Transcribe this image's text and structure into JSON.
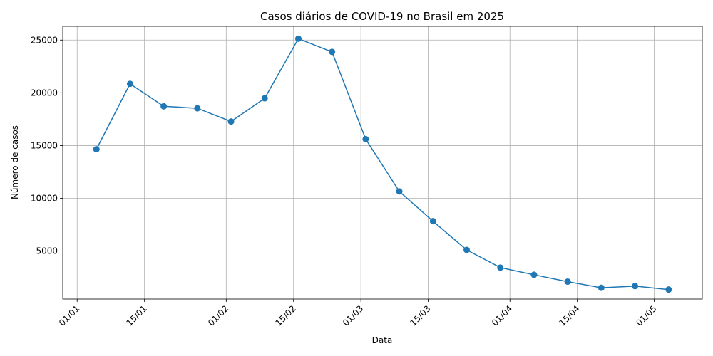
{
  "chart_data": {
    "type": "line",
    "title": "Casos diários de COVID-19 no Brasil em 2025",
    "xlabel": "Data",
    "ylabel": "Número de casos",
    "series_color": "#1f77b4",
    "grid": true,
    "x_date_range": [
      "2024-12-29",
      "2025-05-11"
    ],
    "ylim": [
      450,
      26300
    ],
    "x_ticks": [
      {
        "date": "2025-01-01",
        "label": "01/01"
      },
      {
        "date": "2025-01-15",
        "label": "15/01"
      },
      {
        "date": "2025-02-01",
        "label": "01/02"
      },
      {
        "date": "2025-02-15",
        "label": "15/02"
      },
      {
        "date": "2025-03-01",
        "label": "01/03"
      },
      {
        "date": "2025-03-15",
        "label": "15/03"
      },
      {
        "date": "2025-04-01",
        "label": "01/04"
      },
      {
        "date": "2025-04-15",
        "label": "15/04"
      },
      {
        "date": "2025-05-01",
        "label": "01/05"
      }
    ],
    "y_ticks": [
      {
        "value": 5000,
        "label": "5000"
      },
      {
        "value": 10000,
        "label": "10000"
      },
      {
        "value": 15000,
        "label": "15000"
      },
      {
        "value": 20000,
        "label": "20000"
      },
      {
        "value": 25000,
        "label": "25000"
      }
    ],
    "points": [
      {
        "date": "2025-01-05",
        "value": 14650
      },
      {
        "date": "2025-01-12",
        "value": 20850
      },
      {
        "date": "2025-01-19",
        "value": 18720
      },
      {
        "date": "2025-01-26",
        "value": 18530
      },
      {
        "date": "2025-02-02",
        "value": 17280
      },
      {
        "date": "2025-02-09",
        "value": 19480
      },
      {
        "date": "2025-02-16",
        "value": 25130
      },
      {
        "date": "2025-02-23",
        "value": 23880
      },
      {
        "date": "2025-03-02",
        "value": 15610
      },
      {
        "date": "2025-03-09",
        "value": 10650
      },
      {
        "date": "2025-03-16",
        "value": 7830
      },
      {
        "date": "2025-03-23",
        "value": 5110
      },
      {
        "date": "2025-03-30",
        "value": 3430
      },
      {
        "date": "2025-04-06",
        "value": 2750
      },
      {
        "date": "2025-04-13",
        "value": 2100
      },
      {
        "date": "2025-04-20",
        "value": 1520
      },
      {
        "date": "2025-04-27",
        "value": 1680
      },
      {
        "date": "2025-05-04",
        "value": 1350
      }
    ]
  }
}
